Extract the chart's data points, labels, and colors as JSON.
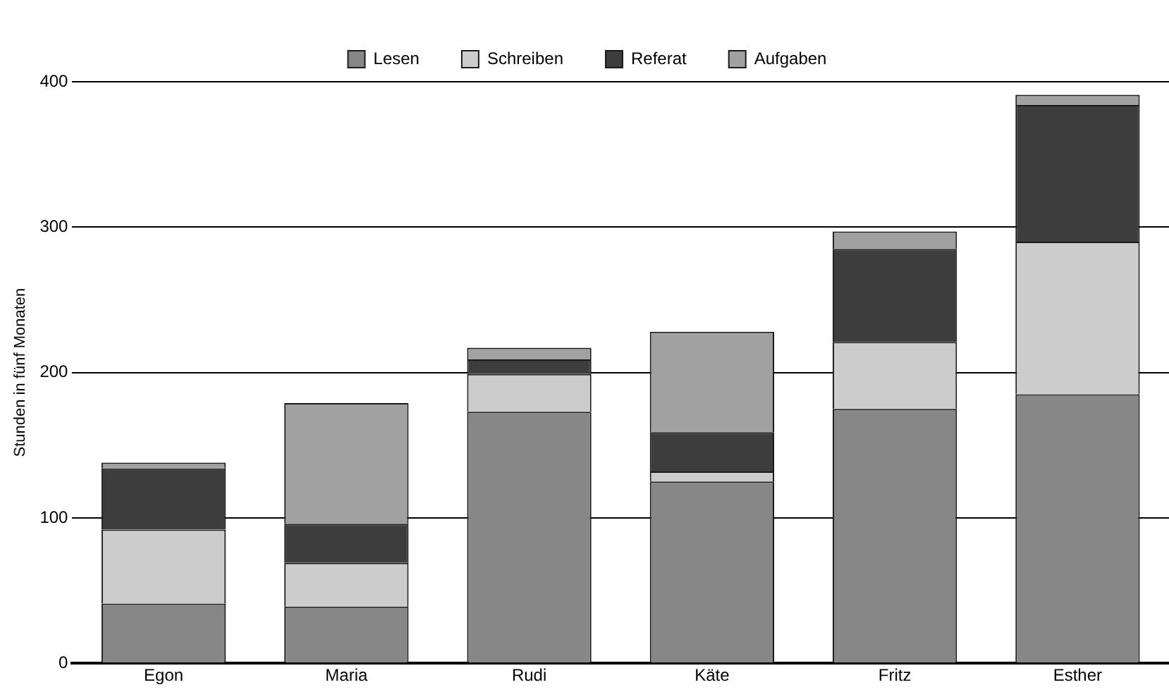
{
  "chart_data": {
    "type": "bar",
    "stacked": true,
    "ylabel": "Stunden in fünf Monaten",
    "categories": [
      "Egon",
      "Maria",
      "Rudi",
      "Käte",
      "Fritz",
      "Esther"
    ],
    "series": [
      {
        "name": "Lesen",
        "color": "#868786",
        "values": [
          41,
          39,
          173,
          125,
          175,
          185
        ]
      },
      {
        "name": "Schreiben",
        "color": "#cbcccb",
        "values": [
          51,
          30,
          26,
          7,
          46,
          105
        ]
      },
      {
        "name": "Referat",
        "color": "#3c3d3c",
        "values": [
          42,
          27,
          10,
          27,
          64,
          94
        ]
      },
      {
        "name": "Aufgaben",
        "color": "#a0a1a0",
        "values": [
          4,
          83,
          8,
          69,
          12,
          7
        ]
      }
    ],
    "ylim": [
      0,
      400
    ],
    "yticks": [
      0,
      100,
      200,
      300,
      400
    ],
    "grid": "y",
    "legend": "top"
  }
}
